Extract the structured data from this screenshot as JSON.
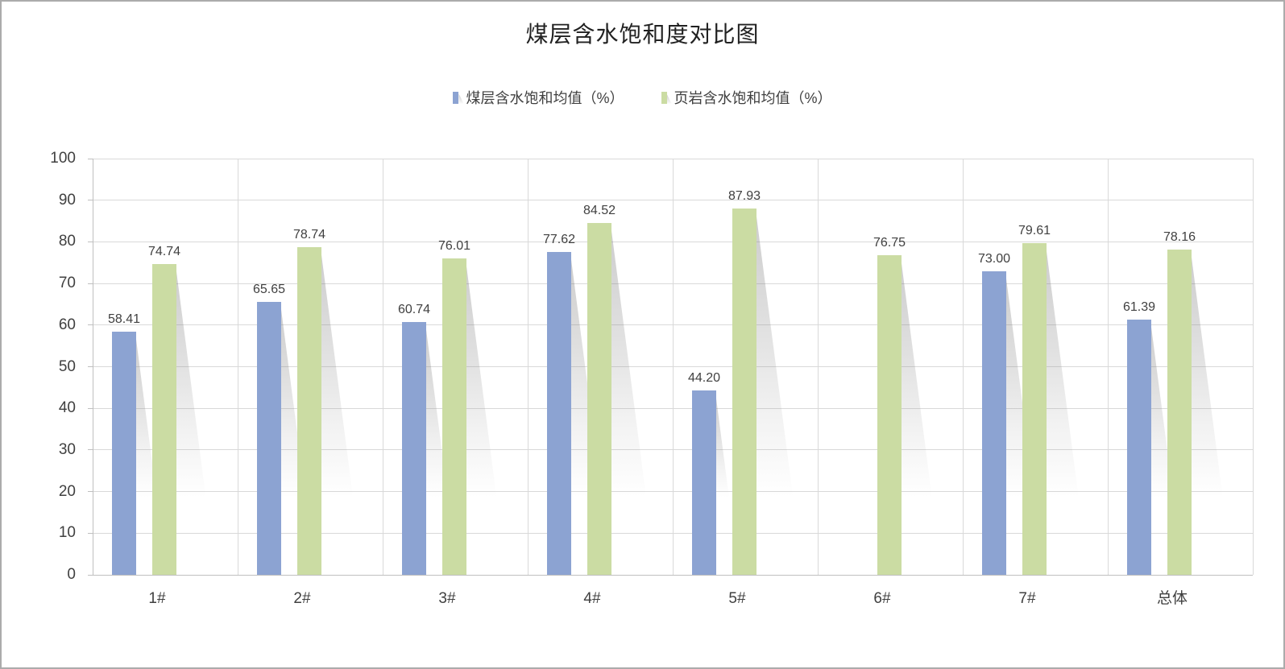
{
  "title": "煤层含水饱和度对比图",
  "chart_data": {
    "type": "bar",
    "title": "煤层含水饱和度对比图",
    "categories": [
      "1#",
      "2#",
      "3#",
      "4#",
      "5#",
      "6#",
      "7#",
      "总体"
    ],
    "series": [
      {
        "name": "煤层含水饱和均值（%）",
        "color": "#8CA3D2",
        "values": [
          58.41,
          65.65,
          60.74,
          77.62,
          44.2,
          null,
          73.0,
          61.39
        ]
      },
      {
        "name": "页岩含水饱和均值（%）",
        "color": "#CBDCA3",
        "values": [
          74.74,
          78.74,
          76.01,
          84.52,
          87.93,
          76.75,
          79.61,
          78.16
        ]
      }
    ],
    "ylabel": "",
    "xlabel": "",
    "ylim": [
      0,
      100
    ],
    "ytick_interval": 10,
    "yticks": [
      0,
      10,
      20,
      30,
      40,
      50,
      60,
      70,
      80,
      90,
      100
    ],
    "grid": true,
    "legend_position": "top",
    "data_labels": true,
    "data_label_decimals": 2
  },
  "colors": {
    "frame_border": "#ABABAB",
    "gridline": "#D9D9D9",
    "axis_line": "#BFBFBF",
    "axis_text": "#404040",
    "title_text": "#212121",
    "bar_shadow": "#D7D7D7",
    "background": "#FFFFFF"
  }
}
